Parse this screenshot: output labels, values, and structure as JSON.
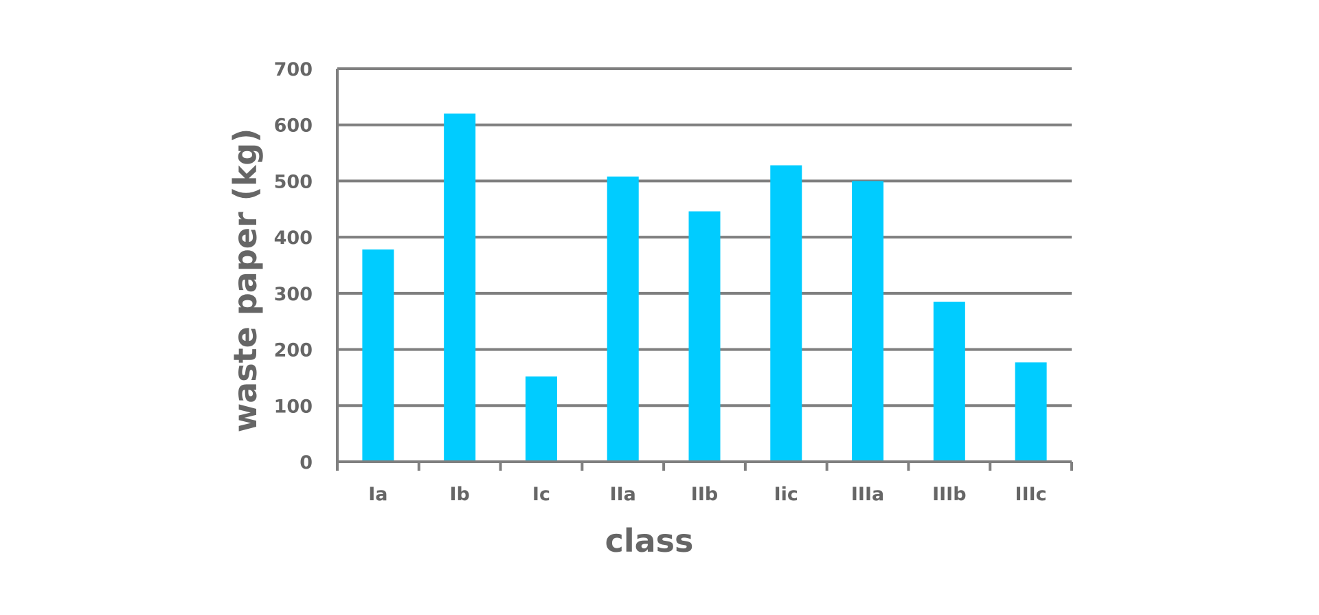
{
  "chart_data": {
    "type": "bar",
    "title": "",
    "xlabel": "class",
    "ylabel": "waste paper (kg)",
    "categories": [
      "Ia",
      "Ib",
      "Ic",
      "IIa",
      "IIb",
      "Iic",
      "IIIa",
      "IIIb",
      "IIIc"
    ],
    "values": [
      378,
      620,
      152,
      508,
      446,
      528,
      500,
      285,
      177
    ],
    "ylim": [
      0,
      700
    ],
    "yticks": [
      "0",
      "100",
      "200",
      "300",
      "400",
      "500",
      "600",
      "700"
    ],
    "grid": true,
    "legend": "none",
    "colors": {
      "bar": "#00CCFF",
      "axis": "#7f7f7f",
      "gridline": "#7f7f7f",
      "text": "#666666"
    }
  }
}
